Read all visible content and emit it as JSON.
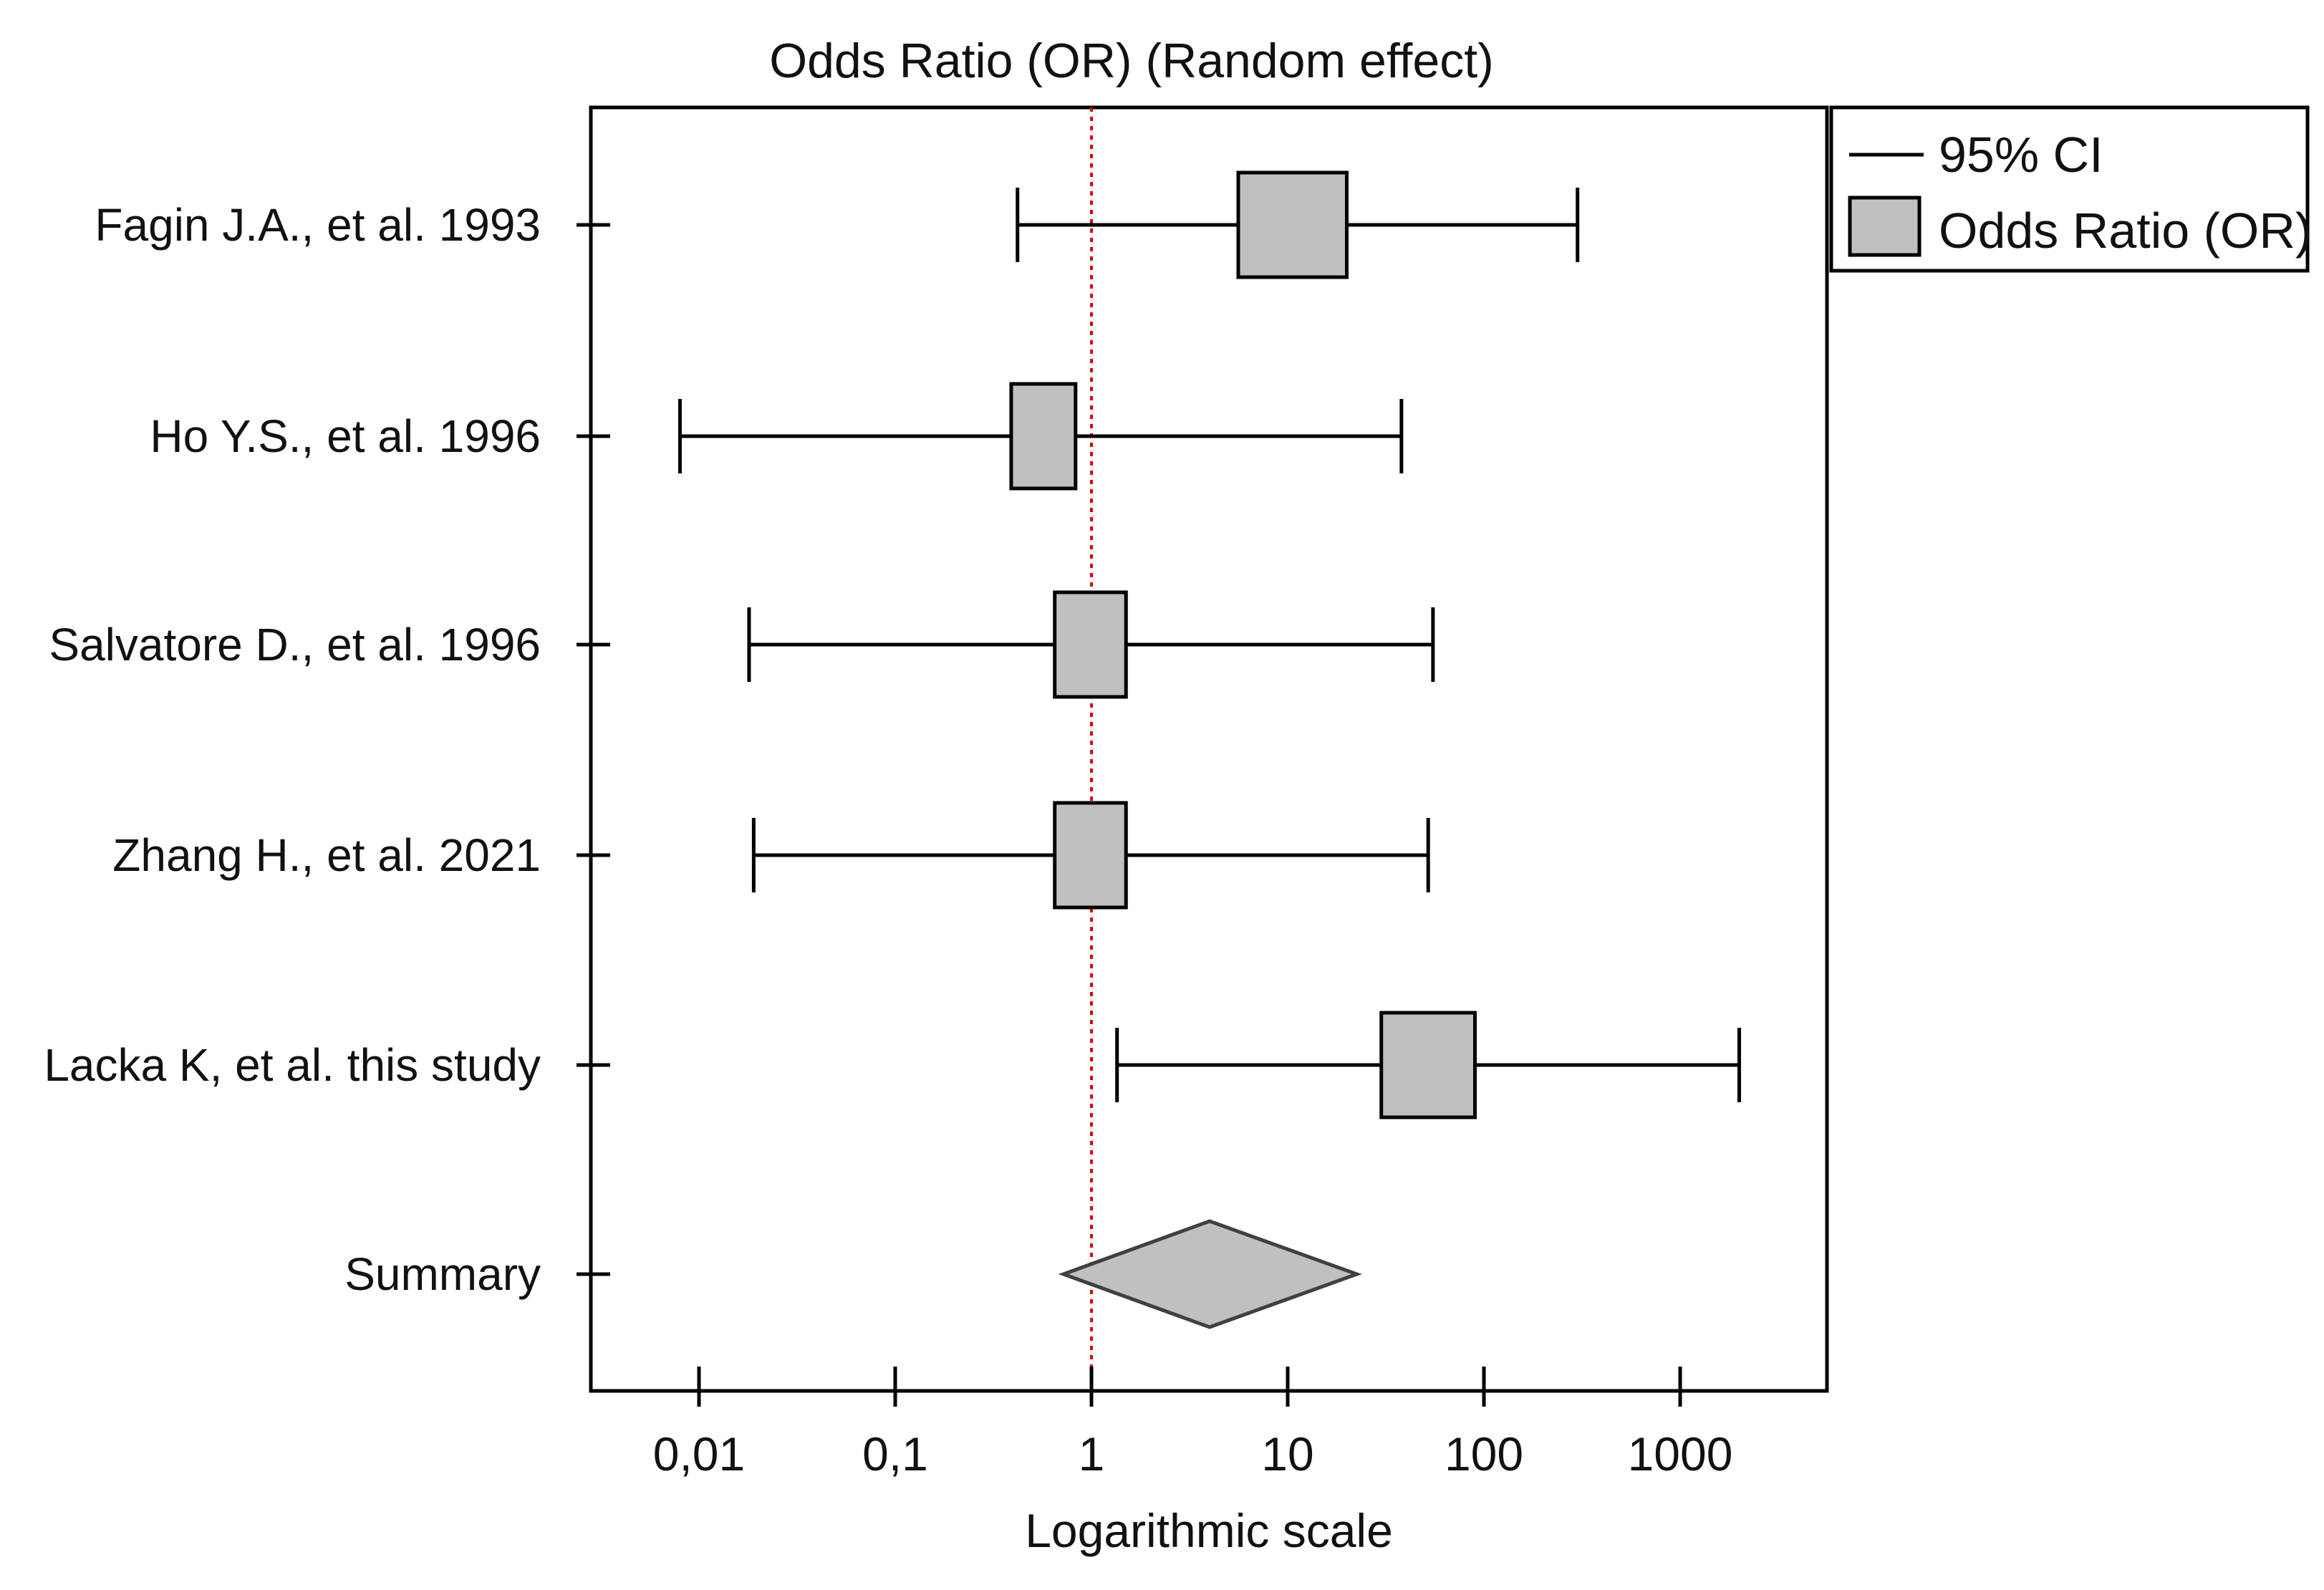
{
  "chart_data": {
    "type": "forest",
    "title": "Odds Ratio (OR) (Random effect)",
    "xlabel": "Logarithmic scale",
    "x_scale": "log",
    "xlim": [
      0.0025,
      5000
    ],
    "x_ticks": [
      {
        "value": 0.01,
        "label": "0,01"
      },
      {
        "value": 0.1,
        "label": "0,1"
      },
      {
        "value": 1,
        "label": "1"
      },
      {
        "value": 10,
        "label": "10"
      },
      {
        "value": 100,
        "label": "100"
      },
      {
        "value": 1000,
        "label": "1000"
      }
    ],
    "reference_line": {
      "value": 1,
      "style": "dotted",
      "color": "#e00000"
    },
    "studies": [
      {
        "label": "Fagin J.A.,  et al. 1993",
        "or": 10.5,
        "ci_low": 0.42,
        "ci_high": 300,
        "box_low": 5.6,
        "box_high": 20
      },
      {
        "label": "Ho Y.S., et al. 1996",
        "or": 0.57,
        "ci_low": 0.008,
        "ci_high": 38,
        "box_low": 0.39,
        "box_high": 0.83
      },
      {
        "label": "Salvatore D., et al. 1996",
        "or": 1.0,
        "ci_low": 0.018,
        "ci_high": 55,
        "box_low": 0.65,
        "box_high": 1.5
      },
      {
        "label": "Zhang H., et al. 2021",
        "or": 1.0,
        "ci_low": 0.019,
        "ci_high": 52,
        "box_low": 0.65,
        "box_high": 1.5
      },
      {
        "label": "Lacka K, et al. this study",
        "or": 52,
        "ci_low": 1.35,
        "ci_high": 2000,
        "box_low": 30,
        "box_high": 90
      }
    ],
    "summary": {
      "label": "Summary",
      "or": 4.0,
      "ci_low": 0.72,
      "ci_high": 22.5
    },
    "legend": {
      "position": "top-right",
      "items": [
        {
          "kind": "line",
          "label": "95% CI"
        },
        {
          "kind": "box",
          "label": "Odds Ratio (OR)"
        }
      ]
    },
    "colors": {
      "box_fill": "#c0c0c0",
      "summary_fill": "#c0c0c0",
      "summary_stroke": "#404040",
      "line": "#000000"
    }
  }
}
